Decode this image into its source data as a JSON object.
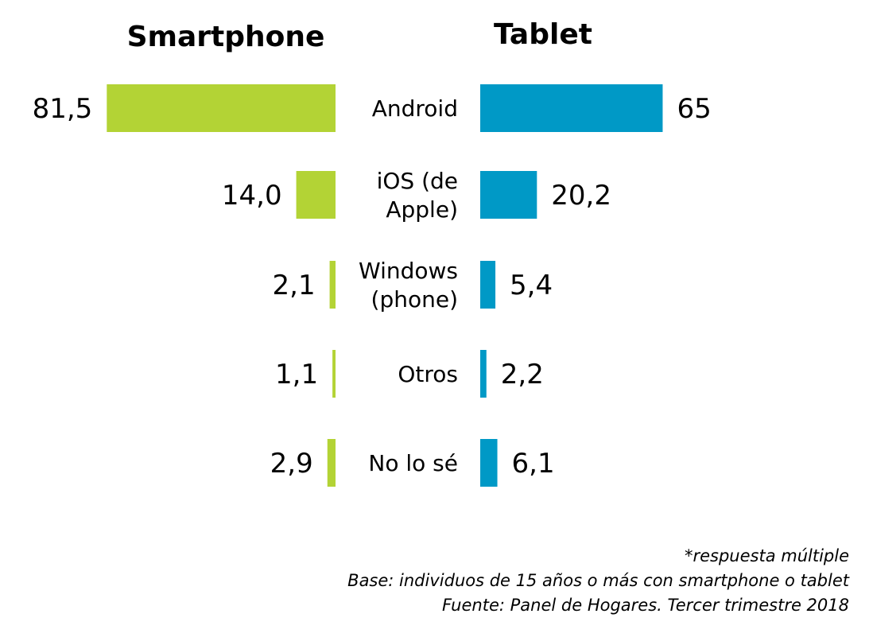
{
  "chart_data": {
    "type": "bar",
    "categories": [
      [
        "Android"
      ],
      [
        "iOS (de",
        "Apple)"
      ],
      [
        "Windows",
        "(phone)"
      ],
      [
        "Otros"
      ],
      [
        "No lo sé"
      ]
    ],
    "series": [
      {
        "name": "Smartphone",
        "color": "#b3d335",
        "values": [
          81.5,
          14.0,
          2.1,
          1.1,
          2.9
        ],
        "labels": [
          "81,5",
          "14,0",
          "2,1",
          "1,1",
          "2,9"
        ]
      },
      {
        "name": "Tablet",
        "color": "#0099c6",
        "values": [
          65,
          20.2,
          5.4,
          2.2,
          6.1
        ],
        "labels": [
          "65",
          "20,2",
          "5,4",
          "2,2",
          "6,1"
        ]
      }
    ]
  },
  "footer": {
    "note": "*respuesta múltiple",
    "base": "Base: individuos de 15 años o más con smartphone o tablet",
    "source": "Fuente: Panel de Hogares. Tercer trimestre 2018"
  }
}
